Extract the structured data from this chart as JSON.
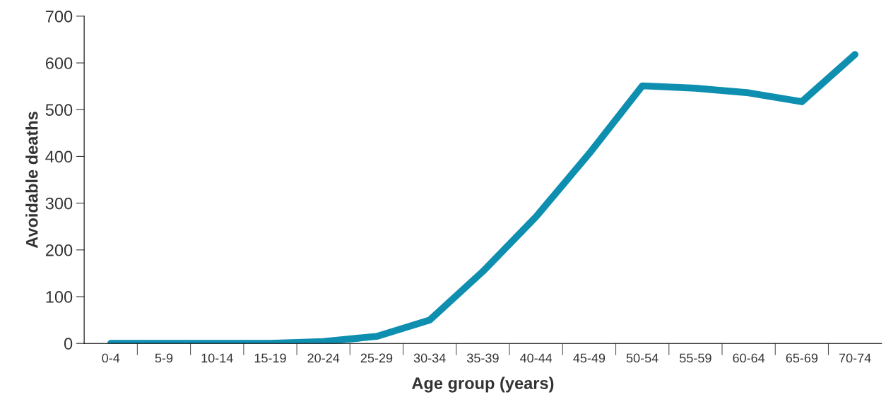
{
  "chart_data": {
    "type": "line",
    "xlabel": "Age group (years)",
    "ylabel": "Avoidable deaths",
    "categories": [
      "0-4",
      "5-9",
      "10-14",
      "15-19",
      "20-24",
      "25-29",
      "30-34",
      "35-39",
      "40-44",
      "45-49",
      "50-54",
      "55-59",
      "60-64",
      "65-69",
      "70-74"
    ],
    "series": [
      {
        "color": "#0e8fb0",
        "values": [
          0,
          0,
          0,
          0,
          4,
          15,
          50,
          154,
          271,
          406,
          551,
          546,
          536,
          517,
          618
        ]
      }
    ],
    "ylim": [
      0,
      700
    ],
    "yticks": [
      0,
      100,
      200,
      300,
      400,
      500,
      600,
      700
    ],
    "grid": false,
    "legend": false,
    "marker": "none",
    "line_style": "solid"
  }
}
